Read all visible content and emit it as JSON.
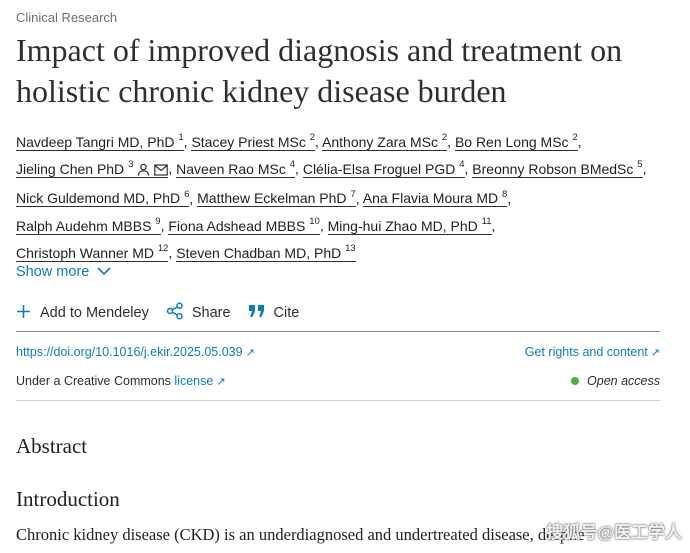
{
  "article": {
    "category": "Clinical Research",
    "title": "Impact of improved diagnosis and treatment on holistic chronic kidney disease burden"
  },
  "authors": [
    {
      "name": "Navdeep Tangri MD, PhD",
      "sup": "1"
    },
    {
      "name": "Stacey Priest MSc",
      "sup": "2"
    },
    {
      "name": "Anthony Zara MSc",
      "sup": "2"
    },
    {
      "name": "Bo Ren Long MSc",
      "sup": "2"
    },
    {
      "name": "Jieling Chen PhD",
      "sup": "3"
    },
    {
      "name": "Naveen Rao MSc",
      "sup": "4"
    },
    {
      "name": "Clélia-Elsa Froguel PGD",
      "sup": "4"
    },
    {
      "name": "Breonny Robson BMedSc",
      "sup": "5"
    },
    {
      "name": "Nick Guldemond MD, PhD",
      "sup": "6"
    },
    {
      "name": "Matthew Eckelman PhD",
      "sup": "7"
    },
    {
      "name": "Ana Flavia Moura MD",
      "sup": "8"
    },
    {
      "name": "Ralph Audehm MBBS",
      "sup": "9"
    },
    {
      "name": "Fiona Adshead MBBS",
      "sup": "10"
    },
    {
      "name": "Ming-hui Zhao MD, PhD",
      "sup": "11"
    },
    {
      "name": "Christoph Wanner MD",
      "sup": "12"
    },
    {
      "name": "Steven Chadban MD, PhD",
      "sup": "13"
    }
  ],
  "show_more": "Show more",
  "actions": {
    "mendeley": "Add to Mendeley",
    "share": "Share",
    "cite": "Cite"
  },
  "links": {
    "doi": "https://doi.org/10.1016/j.ekir.2025.05.039",
    "rights": "Get rights and content"
  },
  "license": {
    "prefix": "Under a Creative Commons",
    "link": "license",
    "open_access": "Open access"
  },
  "sections": {
    "abstract": "Abstract",
    "introduction": "Introduction",
    "intro_text": "Chronic kidney disease (CKD) is an underdiagnosed and undertreated disease, despite"
  },
  "watermark": "搜狐号@医工学人",
  "colors": {
    "link": "#0c7dbb",
    "open_access_dot": "#4caf50"
  },
  "icons": {
    "corresponding_author": "person-icon",
    "email": "envelope-icon",
    "show_more": "chevron-down-icon",
    "mendeley": "plus-icon",
    "share": "share-icon",
    "cite": "quote-icon",
    "external": "arrow-up-right-icon"
  }
}
